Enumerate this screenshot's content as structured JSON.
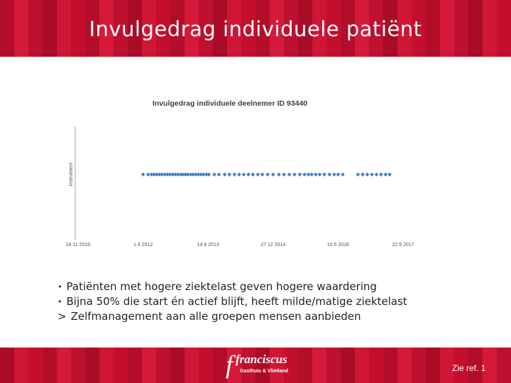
{
  "header": {
    "title": "Invulgedrag individuele patiënt"
  },
  "colors": {
    "brand_red": "#c8102e",
    "marker_blue": "#4a7ebb"
  },
  "chart_data": {
    "type": "scatter",
    "title": "Invulgedrag individuele deelnemer ID 93440",
    "ylabel": "Instrument",
    "xlabel": "",
    "xaxis": "date",
    "xlim": [
      "2010-11-18",
      "2017-09-22"
    ],
    "x_ticks": [
      "18 11 2010",
      "1 4 2012",
      "14 8 2013",
      "27 12 2014",
      "10 5 2016",
      "22 9 2017"
    ],
    "grid": false,
    "series": [
      {
        "y": 1,
        "x": [
          "2012-04-01",
          "2012-05-10",
          "2012-06-05",
          "2012-06-25",
          "2012-07-15",
          "2012-08-05",
          "2012-08-25",
          "2012-09-15",
          "2012-10-05",
          "2012-10-25",
          "2012-11-15",
          "2012-12-05",
          "2012-12-25",
          "2013-01-15",
          "2013-02-01",
          "2013-02-20",
          "2013-03-10",
          "2013-04-01",
          "2013-04-20",
          "2013-05-10",
          "2013-05-30",
          "2013-06-20",
          "2013-07-10",
          "2013-08-01",
          "2013-08-20",
          "2013-10-01",
          "2013-11-05",
          "2013-12-20",
          "2014-01-25",
          "2014-03-05",
          "2014-04-10",
          "2014-05-15",
          "2014-06-20",
          "2014-07-25",
          "2014-09-01",
          "2014-10-05",
          "2014-11-15",
          "2014-12-27",
          "2015-02-10",
          "2015-03-20",
          "2015-05-01",
          "2015-06-10",
          "2015-07-20",
          "2015-08-25",
          "2015-09-25",
          "2015-10-20",
          "2015-11-20",
          "2015-12-20",
          "2016-01-25",
          "2016-03-05",
          "2016-04-10",
          "2016-05-10",
          "2016-06-15",
          "2016-10-10",
          "2016-11-15",
          "2016-12-20",
          "2017-01-25",
          "2017-03-01",
          "2017-04-05",
          "2017-05-10",
          "2017-06-10"
        ]
      }
    ]
  },
  "bullets": [
    {
      "marker": "•",
      "text": "Patiënten met hogere ziektelast geven hogere waardering"
    },
    {
      "marker": "•",
      "text": "Bijna 50% die start én actief blijft, heeft milde/matige ziektelast"
    },
    {
      "marker": ">",
      "text": "Zelfmanagement aan alle groepen mensen aanbieden"
    }
  ],
  "footer": {
    "logo_name": "franciscus",
    "logo_sub": "Gasthuis & Vlietland",
    "reference": "Zie ref. 1"
  }
}
